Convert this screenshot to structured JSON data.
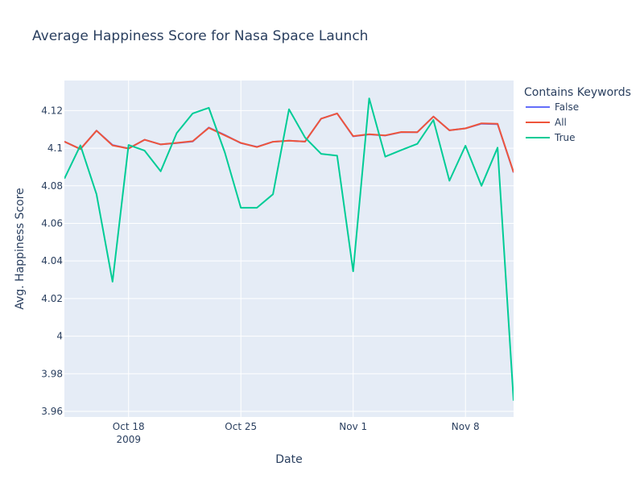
{
  "chart_data": {
    "type": "line",
    "title": "Average Happiness Score for Nasa Space Launch",
    "xlabel": "Date",
    "ylabel": "Avg. Happiness Score",
    "x_start": "2009-10-14",
    "x_end": "2009-11-11",
    "x_ticks": [
      {
        "date": "2009-10-18",
        "label": "Oct 18",
        "sub": "2009"
      },
      {
        "date": "2009-10-25",
        "label": "Oct 25",
        "sub": ""
      },
      {
        "date": "2009-11-01",
        "label": "Nov 1",
        "sub": ""
      },
      {
        "date": "2009-11-08",
        "label": "Nov 8",
        "sub": ""
      }
    ],
    "ylim": [
      3.957,
      4.136
    ],
    "y_ticks": [
      {
        "v": 3.96,
        "label": "3.96"
      },
      {
        "v": 3.98,
        "label": "3.98"
      },
      {
        "v": 4.0,
        "label": "4"
      },
      {
        "v": 4.02,
        "label": "4.02"
      },
      {
        "v": 4.04,
        "label": "4.04"
      },
      {
        "v": 4.06,
        "label": "4.06"
      },
      {
        "v": 4.08,
        "label": "4.08"
      },
      {
        "v": 4.1,
        "label": "4.1"
      },
      {
        "v": 4.12,
        "label": "4.12"
      }
    ],
    "legend": {
      "title": "Contains Keywords",
      "position": "top-right"
    },
    "dates": [
      "2009-10-14",
      "2009-10-15",
      "2009-10-16",
      "2009-10-17",
      "2009-10-18",
      "2009-10-19",
      "2009-10-20",
      "2009-10-21",
      "2009-10-22",
      "2009-10-23",
      "2009-10-24",
      "2009-10-25",
      "2009-10-26",
      "2009-10-27",
      "2009-10-28",
      "2009-10-29",
      "2009-10-30",
      "2009-10-31",
      "2009-11-01",
      "2009-11-02",
      "2009-11-03",
      "2009-11-04",
      "2009-11-05",
      "2009-11-06",
      "2009-11-07",
      "2009-11-08",
      "2009-11-09",
      "2009-11-10",
      "2009-11-11"
    ],
    "series": [
      {
        "name": "False",
        "color": "#636efa",
        "values": [
          4.1035,
          4.0995,
          4.1093,
          4.1017,
          4.0998,
          4.1045,
          4.102,
          4.1027,
          4.1036,
          4.111,
          4.107,
          4.1027,
          4.1007,
          4.1034,
          4.104,
          4.1035,
          4.1157,
          4.1185,
          4.1063,
          4.1073,
          4.1067,
          4.1085,
          4.1085,
          4.1168,
          4.1095,
          4.1105,
          4.113,
          4.1128,
          4.087
        ]
      },
      {
        "name": "All",
        "color": "#ef553b",
        "values": [
          4.1035,
          4.0995,
          4.1093,
          4.1015,
          4.0998,
          4.1045,
          4.102,
          4.1028,
          4.1037,
          4.1108,
          4.1068,
          4.1028,
          4.1006,
          4.1034,
          4.104,
          4.1035,
          4.1157,
          4.1185,
          4.1064,
          4.1074,
          4.1068,
          4.1086,
          4.1085,
          4.1168,
          4.1095,
          4.1105,
          4.1132,
          4.113,
          4.0872
        ]
      },
      {
        "name": "True",
        "color": "#00cc96",
        "values": [
          4.0838,
          4.1015,
          4.0755,
          4.029,
          4.1017,
          4.0987,
          4.0877,
          4.108,
          4.1185,
          4.1215,
          4.0977,
          4.0683,
          4.0683,
          4.0755,
          4.1207,
          4.1057,
          4.097,
          4.096,
          4.0345,
          4.1265,
          4.0955,
          4.099,
          4.1023,
          4.115,
          4.0827,
          4.1013,
          4.08,
          4.1003,
          3.9657
        ]
      }
    ]
  }
}
